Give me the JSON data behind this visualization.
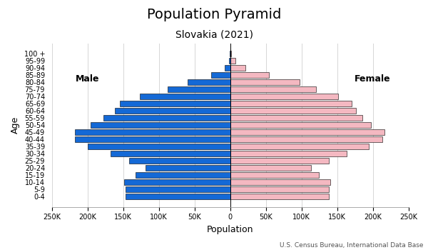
{
  "title": "Population Pyramid",
  "subtitle": "Slovakia (2021)",
  "xlabel": "Population",
  "ylabel": "Age",
  "source": "U.S. Census Bureau, International Data Base",
  "age_groups": [
    "0-4",
    "5-9",
    "10-14",
    "15-19",
    "20-24",
    "25-29",
    "30-34",
    "35-39",
    "40-44",
    "45-49",
    "50-54",
    "55-59",
    "60-64",
    "65-69",
    "70-74",
    "75-79",
    "80-84",
    "85-89",
    "90-94",
    "95-99",
    "100 +"
  ],
  "male": [
    147000,
    147000,
    149000,
    133000,
    119000,
    142000,
    168000,
    200000,
    218000,
    218000,
    196000,
    178000,
    162000,
    155000,
    127000,
    88000,
    60000,
    27000,
    8000,
    2000,
    300
  ],
  "female": [
    138000,
    138000,
    140000,
    124000,
    113000,
    138000,
    163000,
    194000,
    213000,
    216000,
    197000,
    185000,
    176000,
    170000,
    151000,
    120000,
    97000,
    54000,
    21000,
    7000,
    1500
  ],
  "male_color": "#1469d6",
  "female_color": "#f4b8c1",
  "bar_edgecolor": "#000000",
  "bar_linewidth": 0.4,
  "male_label": "Male",
  "female_label": "Female",
  "xlim": 250000,
  "xtick_step": 50000,
  "background_color": "#ffffff",
  "grid_color": "#d0d0d0",
  "title_fontsize": 14,
  "title_fontweight": "normal",
  "subtitle_fontsize": 10,
  "label_fontsize": 9,
  "tick_fontsize": 7,
  "source_fontsize": 6.5,
  "male_label_fontsize": 9,
  "female_label_fontsize": 9
}
